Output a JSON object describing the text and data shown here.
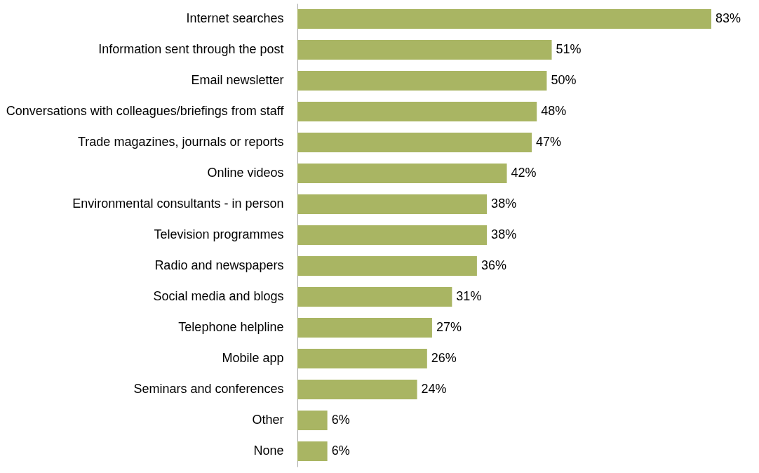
{
  "chart_data": {
    "type": "bar",
    "orientation": "horizontal",
    "categories": [
      "Internet searches",
      "Information sent through the post",
      "Email newsletter",
      "Conversations with colleagues/briefings from staff",
      "Trade magazines, journals or reports",
      "Online videos",
      "Environmental consultants - in person",
      "Television programmes",
      "Radio and newspapers",
      "Social media and blogs",
      "Telephone helpline",
      "Mobile app",
      "Seminars and conferences",
      "Other",
      "None"
    ],
    "values": [
      83,
      51,
      50,
      48,
      47,
      42,
      38,
      38,
      36,
      31,
      27,
      26,
      24,
      6,
      6
    ],
    "value_labels": [
      "83%",
      "51%",
      "50%",
      "48%",
      "47%",
      "42%",
      "38%",
      "38%",
      "36%",
      "31%",
      "27%",
      "26%",
      "24%",
      "6%",
      "6%"
    ],
    "color": "#a9b563"
  }
}
